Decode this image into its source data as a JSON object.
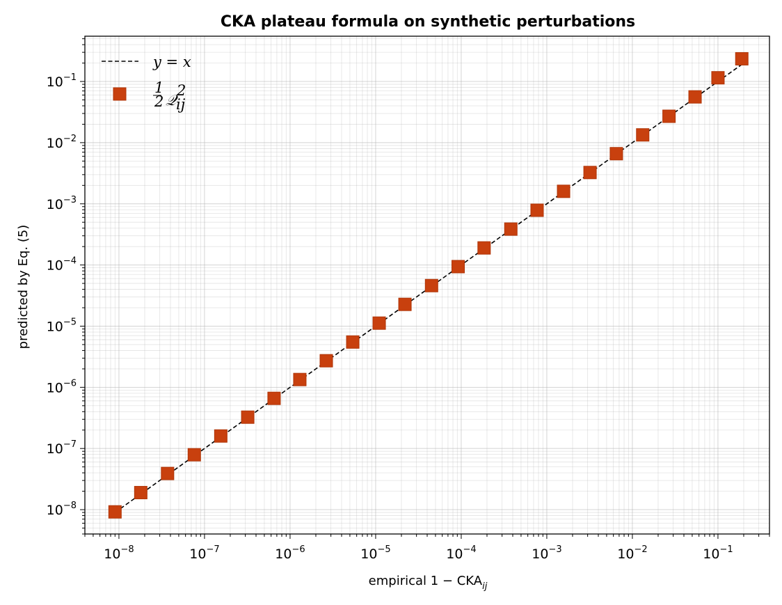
{
  "chart_data": {
    "type": "scatter",
    "title": "CKA plateau formula on synthetic perturbations",
    "xlabel": "empirical  1 − CKA",
    "xlabel_sub": "ij",
    "ylabel": "predicted by Eq. (5)",
    "xscale": "log",
    "yscale": "log",
    "xlim": [
      4e-09,
      0.4
    ],
    "ylim": [
      4e-09,
      0.55
    ],
    "grid": true,
    "legend_placement": "top-left",
    "x_ticks": [
      {
        "base": "10",
        "exp": "−8"
      },
      {
        "base": "10",
        "exp": "−7"
      },
      {
        "base": "10",
        "exp": "−6"
      },
      {
        "base": "10",
        "exp": "−5"
      },
      {
        "base": "10",
        "exp": "−4"
      },
      {
        "base": "10",
        "exp": "−3"
      },
      {
        "base": "10",
        "exp": "−2"
      },
      {
        "base": "10",
        "exp": "−1"
      }
    ],
    "y_ticks": [
      {
        "base": "10",
        "exp": "−8"
      },
      {
        "base": "10",
        "exp": "−7"
      },
      {
        "base": "10",
        "exp": "−6"
      },
      {
        "base": "10",
        "exp": "−5"
      },
      {
        "base": "10",
        "exp": "−4"
      },
      {
        "base": "10",
        "exp": "−3"
      },
      {
        "base": "10",
        "exp": "−2"
      },
      {
        "base": "10",
        "exp": "−1"
      }
    ],
    "series": [
      {
        "name": "y = x",
        "kind": "line",
        "style": "dashed",
        "color": "#000000",
        "x": [
          9e-09,
          0.19
        ],
        "y": [
          9e-09,
          0.19
        ]
      },
      {
        "name": "½ Q²ij",
        "kind": "scatter",
        "marker": "square",
        "color": "#c8400e",
        "x": [
          9e-09,
          1.8e-08,
          3.7e-08,
          7.6e-08,
          1.55e-07,
          3.2e-07,
          6.5e-07,
          1.3e-06,
          2.65e-06,
          5.4e-06,
          1.1e-05,
          2.2e-05,
          4.5e-05,
          9.2e-05,
          0.000185,
          0.00038,
          0.00077,
          0.00157,
          0.0032,
          0.0065,
          0.0132,
          0.0268,
          0.054,
          0.1,
          0.19
        ],
        "y": [
          9.2e-09,
          1.9e-08,
          3.9e-08,
          7.9e-08,
          1.6e-07,
          3.25e-07,
          6.6e-07,
          1.34e-06,
          2.72e-06,
          5.5e-06,
          1.12e-05,
          2.27e-05,
          4.6e-05,
          9.4e-05,
          0.00019,
          0.000386,
          0.000785,
          0.0016,
          0.00325,
          0.0066,
          0.0134,
          0.027,
          0.056,
          0.115,
          0.235
        ]
      }
    ],
    "legend": [
      {
        "kind": "line",
        "label": "y = x"
      },
      {
        "kind": "marker",
        "label": "½ Q²ij"
      }
    ]
  }
}
